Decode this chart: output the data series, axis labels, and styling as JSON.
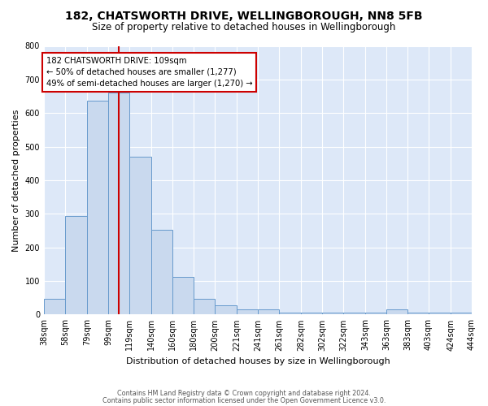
{
  "title": "182, CHATSWORTH DRIVE, WELLINGBOROUGH, NN8 5FB",
  "subtitle": "Size of property relative to detached houses in Wellingborough",
  "xlabel": "Distribution of detached houses by size in Wellingborough",
  "ylabel": "Number of detached properties",
  "bin_edges": [
    38,
    58,
    79,
    99,
    119,
    140,
    160,
    180,
    200,
    221,
    241,
    261,
    282,
    302,
    322,
    343,
    363,
    383,
    403,
    424,
    444
  ],
  "bar_heights": [
    48,
    293,
    638,
    660,
    470,
    253,
    113,
    48,
    28,
    15,
    15,
    5,
    5,
    5,
    5,
    5,
    15,
    5,
    5,
    5
  ],
  "bar_facecolor": "#c9d9ee",
  "bar_edgecolor": "#6699cc",
  "vline_x": 109,
  "vline_color": "#cc0000",
  "annotation_text": "182 CHATSWORTH DRIVE: 109sqm\n← 50% of detached houses are smaller (1,277)\n49% of semi-detached houses are larger (1,270) →",
  "annotation_box_edgecolor": "#cc0000",
  "annotation_box_facecolor": "#ffffff",
  "ylim": [
    0,
    800
  ],
  "yticks": [
    0,
    100,
    200,
    300,
    400,
    500,
    600,
    700,
    800
  ],
  "fig_background_color": "#ffffff",
  "plot_background_color": "#dde8f8",
  "footer_line1": "Contains HM Land Registry data © Crown copyright and database right 2024.",
  "footer_line2": "Contains public sector information licensed under the Open Government Licence v3.0.",
  "tick_labels": [
    "38sqm",
    "58sqm",
    "79sqm",
    "99sqm",
    "119sqm",
    "140sqm",
    "160sqm",
    "180sqm",
    "200sqm",
    "221sqm",
    "241sqm",
    "261sqm",
    "282sqm",
    "302sqm",
    "322sqm",
    "343sqm",
    "363sqm",
    "383sqm",
    "403sqm",
    "424sqm",
    "444sqm"
  ]
}
